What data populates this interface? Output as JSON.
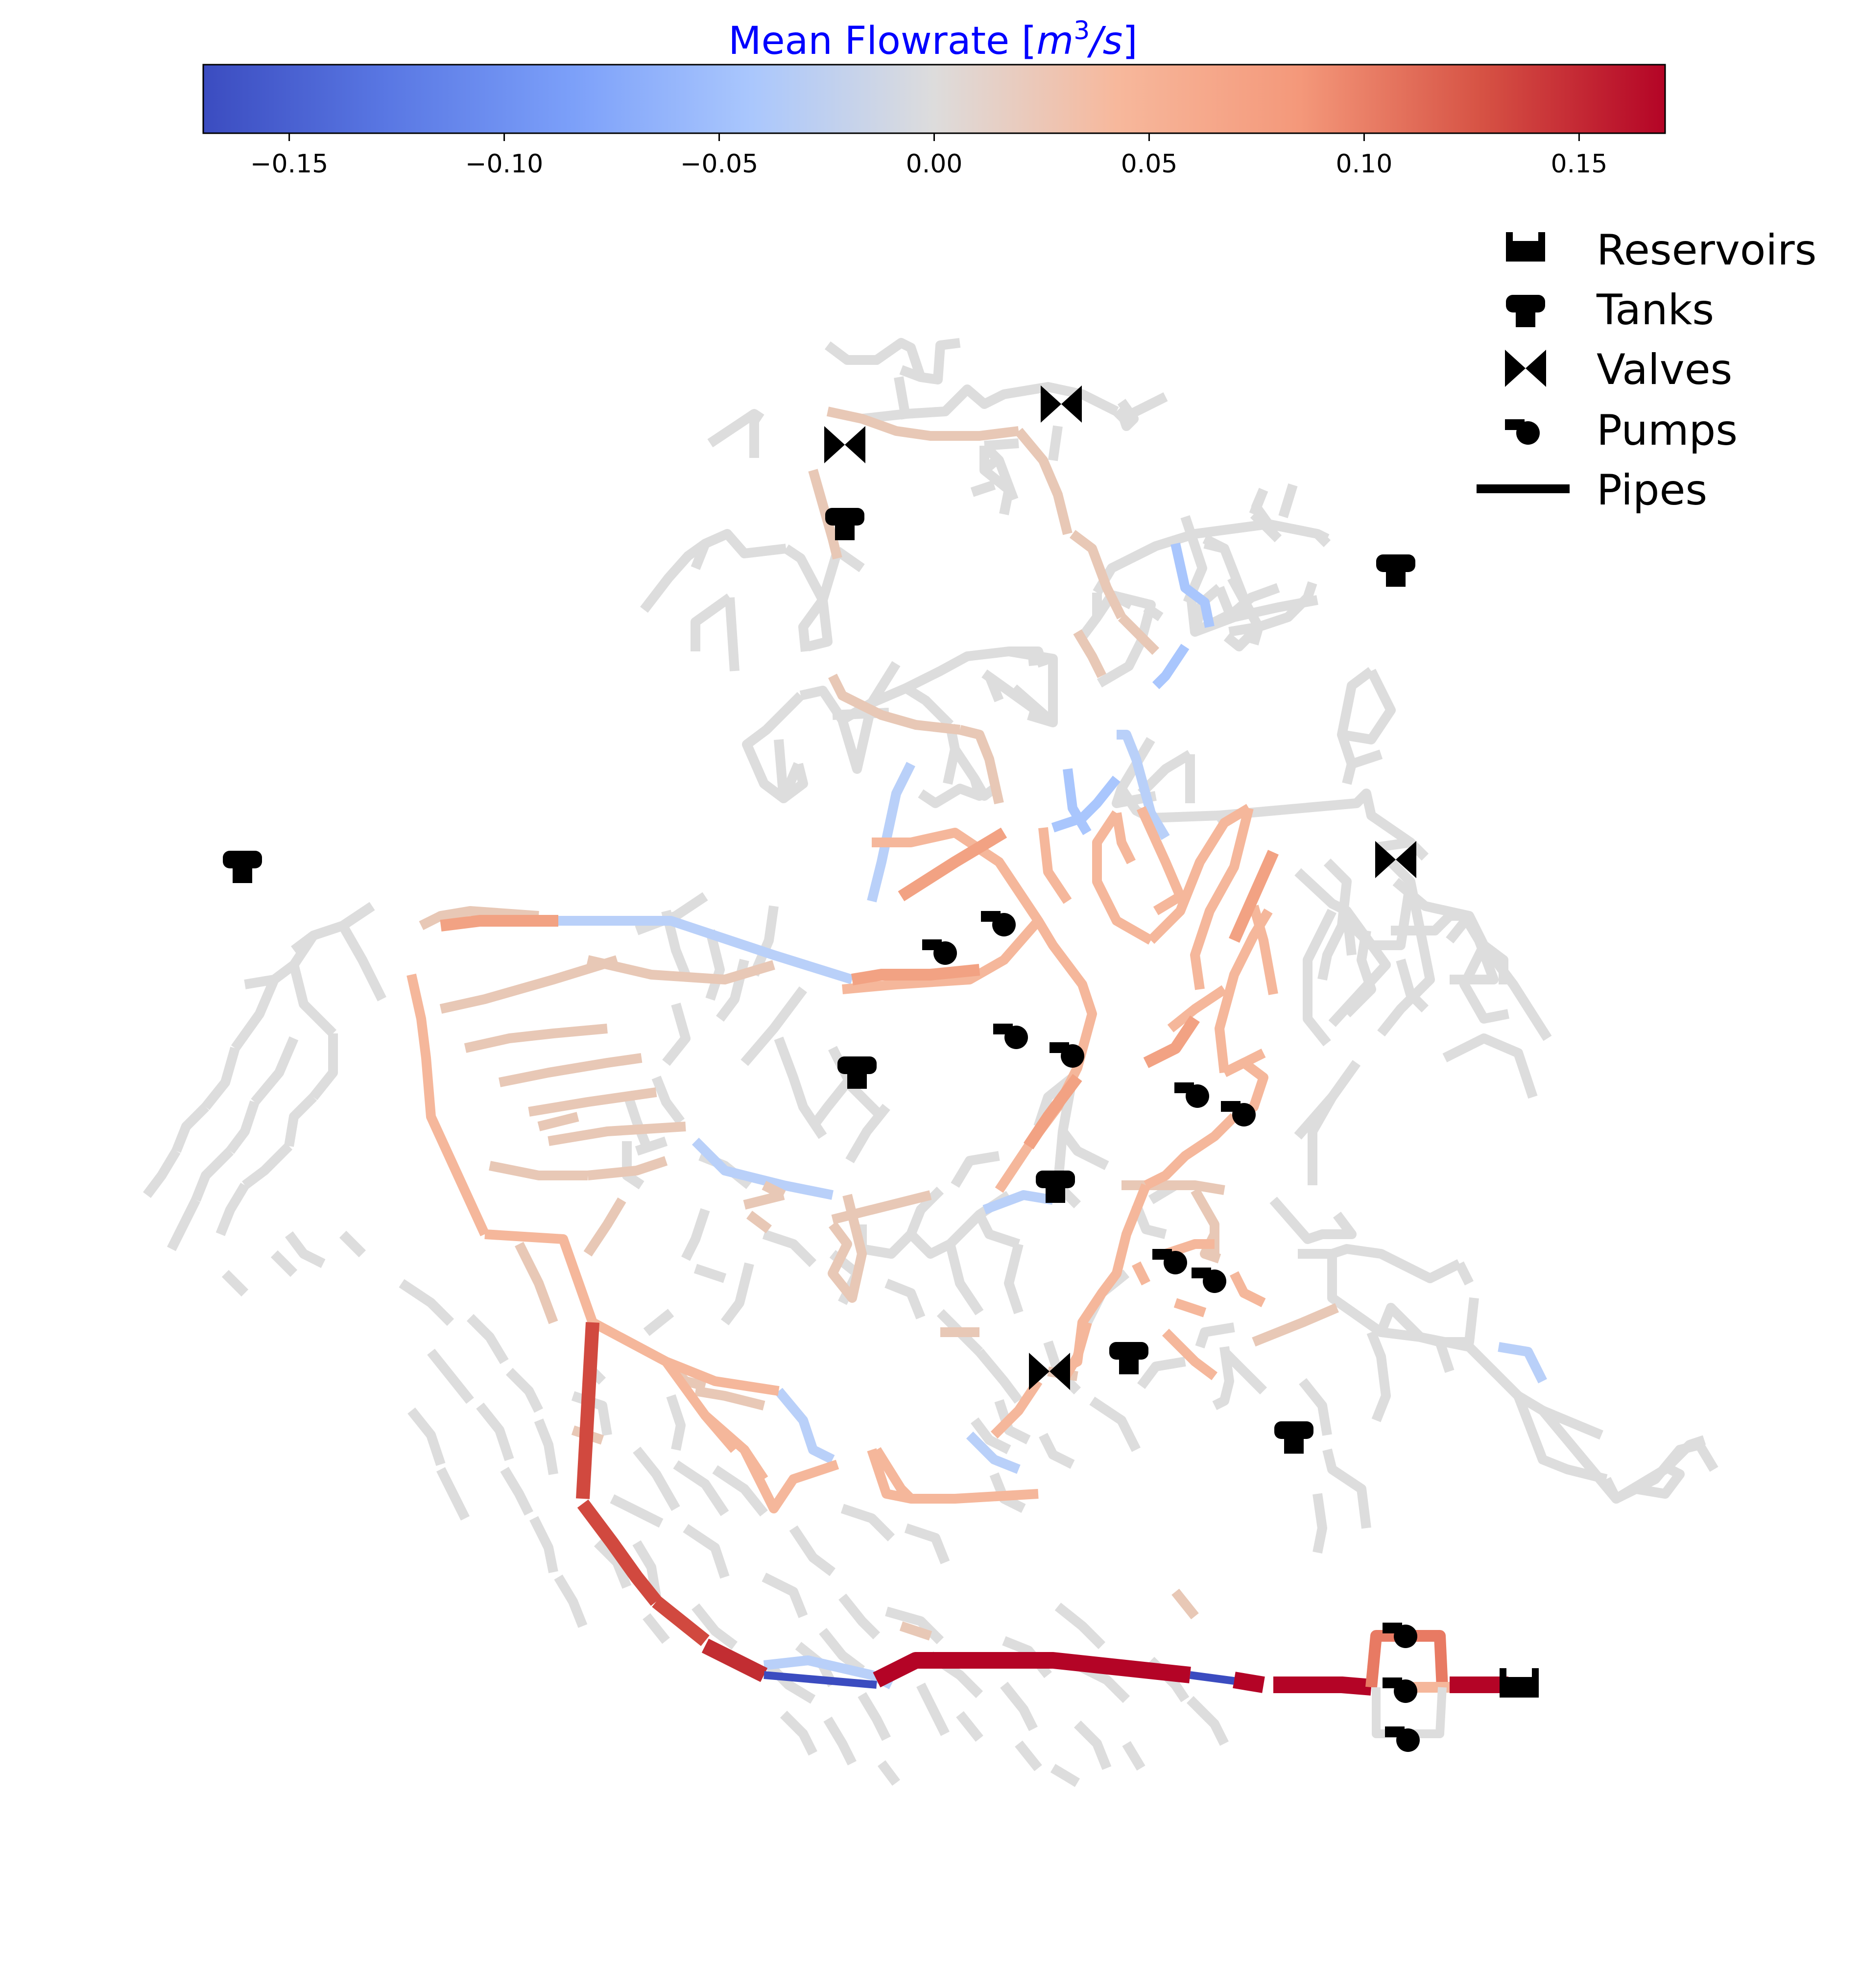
{
  "colorbar": {
    "title_text": "Mean Flowrate [",
    "title_math": "m",
    "title_exp": "3",
    "title_tail": "/s",
    "title_close": "]",
    "colormap": "coolwarm",
    "range": [
      -0.17,
      0.17
    ],
    "ticks": [
      {
        "value": -0.15,
        "label": "−0.15"
      },
      {
        "value": -0.1,
        "label": "−0.10"
      },
      {
        "value": -0.05,
        "label": "−0.05"
      },
      {
        "value": 0.0,
        "label": "0.00"
      },
      {
        "value": 0.05,
        "label": "0.05"
      },
      {
        "value": 0.1,
        "label": "0.10"
      },
      {
        "value": 0.15,
        "label": "0.15"
      }
    ],
    "colors": {
      "min": "#3b4cc0",
      "mid": "#dddddd",
      "max": "#b40426"
    }
  },
  "legend": {
    "placement": "top-right",
    "items": [
      {
        "label": "Reservoirs",
        "icon": "reservoir-icon"
      },
      {
        "label": "Tanks",
        "icon": "tank-icon"
      },
      {
        "label": "Valves",
        "icon": "valve-icon"
      },
      {
        "label": "Pumps",
        "icon": "pump-icon"
      },
      {
        "label": "Pipes",
        "icon": "pipe-icon"
      }
    ]
  }
}
